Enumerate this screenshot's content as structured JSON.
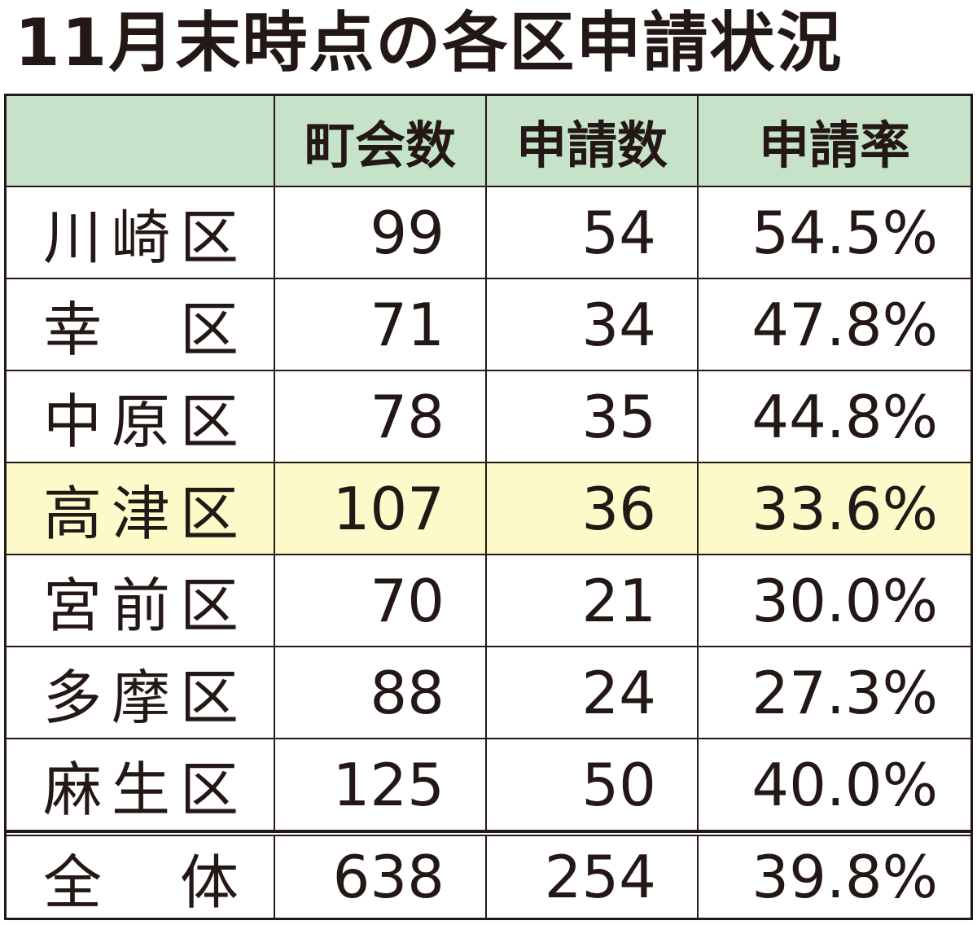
{
  "header": {
    "title": "11月末時点の各区申請状況"
  },
  "table": {
    "columns": [
      "町会数",
      "申請数",
      "申請率"
    ],
    "rows": [
      [
        "川崎区",
        "99",
        "54",
        "54.5%"
      ],
      [
        "幸区",
        "71",
        "34",
        "47.8%"
      ],
      [
        "中原区",
        "78",
        "35",
        "44.8%"
      ],
      [
        "高津区",
        "107",
        "36",
        "33.6%"
      ],
      [
        "宮前区",
        "70",
        "21",
        "30.0%"
      ],
      [
        "多摩区",
        "88",
        "24",
        "27.3%"
      ],
      [
        "麻生区",
        "125",
        "50",
        "40.0%"
      ]
    ],
    "highlight_row": 3,
    "total": [
      "全体",
      "638",
      "254",
      "39.8%"
    ]
  }
}
